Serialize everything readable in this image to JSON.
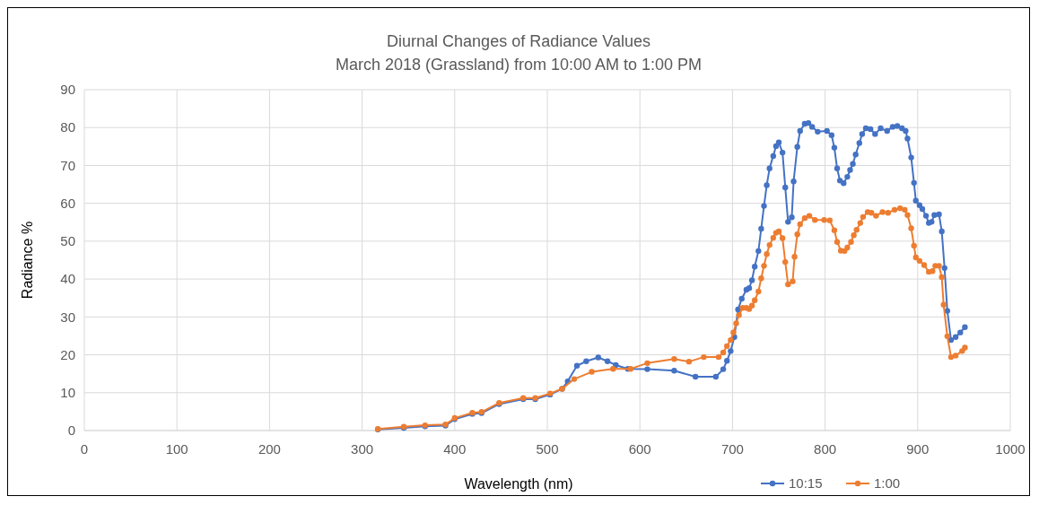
{
  "chart_data": {
    "type": "line",
    "title": "Diurnal Changes of Radiance Values",
    "subtitle": "March 2018 (Grassland) from 10:00 AM to 1:00 PM",
    "xlabel": "Wavelength (nm)",
    "ylabel": "Radiance %",
    "xlim": [
      0,
      1000
    ],
    "xticks": [
      0,
      100,
      200,
      300,
      400,
      500,
      600,
      700,
      800,
      900,
      1000
    ],
    "ylim": [
      0,
      90
    ],
    "yticks": [
      0,
      10,
      20,
      30,
      40,
      50,
      60,
      70,
      80,
      90
    ],
    "grid": true,
    "legend": "bottom right",
    "marker": "circle",
    "line_style": "solid",
    "series": [
      {
        "name": "10:15",
        "color": "#4472c4",
        "x": [
          317,
          345,
          368,
          390,
          400,
          419,
          429,
          448,
          474,
          487,
          503,
          516,
          522,
          532,
          542,
          555,
          565,
          574,
          587,
          608,
          637,
          660,
          682,
          690,
          694,
          698,
          702,
          706,
          710,
          715,
          718,
          721,
          724,
          728,
          731,
          734,
          737,
          740,
          744,
          747,
          750,
          754,
          757,
          760,
          764,
          766,
          770,
          773,
          778,
          782,
          786,
          792,
          802,
          807,
          810,
          813,
          816,
          820,
          824,
          827,
          830,
          833,
          837,
          840,
          844,
          849,
          854,
          860,
          867,
          873,
          878,
          883,
          887,
          889,
          893,
          896,
          898,
          902,
          905,
          909,
          912,
          915,
          918,
          923,
          926,
          929,
          932,
          936,
          941,
          946,
          951
        ],
        "values": [
          0.3,
          0.7,
          1.1,
          1.3,
          3,
          4.4,
          4.6,
          7,
          8.3,
          8.3,
          9.5,
          11,
          13,
          17.1,
          18.3,
          19.3,
          18.3,
          17.3,
          16.3,
          16.2,
          15.8,
          14.2,
          14.2,
          16.2,
          18.4,
          21,
          24.7,
          32,
          34.8,
          37.2,
          37.6,
          39.7,
          43.3,
          47.4,
          53.3,
          59.3,
          64.8,
          69.2,
          72.5,
          75.1,
          76.1,
          73.4,
          64.2,
          55.1,
          56.3,
          65.8,
          74.9,
          79.1,
          81,
          81.2,
          80.2,
          78.9,
          79.1,
          78,
          74.7,
          69.2,
          66,
          65.3,
          67,
          68.8,
          70.4,
          72.9,
          75.9,
          78.3,
          79.8,
          79.6,
          78.3,
          79.8,
          79.1,
          80.2,
          80.4,
          79.8,
          79.1,
          77.1,
          72.1,
          65.4,
          60.7,
          59.5,
          58.5,
          56.7,
          54.8,
          55.1,
          56.9,
          57.1,
          52.6,
          42.9,
          31.6,
          23.9,
          24.7,
          25.9,
          27.3
        ]
      },
      {
        "name": "1:00",
        "color": "#ed7d31",
        "x": [
          317,
          345,
          368,
          390,
          400,
          419,
          429,
          448,
          474,
          487,
          503,
          516,
          529,
          548,
          571,
          590,
          608,
          637,
          653,
          669,
          685,
          690,
          694,
          698,
          701,
          704,
          707,
          711,
          715,
          718,
          721,
          724,
          728,
          731,
          734,
          737,
          740,
          744,
          747,
          750,
          754,
          757,
          760,
          765,
          767,
          770,
          773,
          778,
          783,
          789,
          799,
          805,
          810,
          813,
          817,
          821,
          824,
          828,
          831,
          834,
          838,
          841,
          846,
          850,
          855,
          862,
          868,
          875,
          881,
          886,
          889,
          893,
          896,
          898,
          902,
          907,
          912,
          916,
          919,
          923,
          926,
          928,
          932,
          936,
          941,
          948,
          951
        ],
        "values": [
          0.4,
          1,
          1.4,
          1.6,
          3.3,
          4.7,
          4.9,
          7.3,
          8.6,
          8.6,
          9.8,
          11,
          13.6,
          15.5,
          16.3,
          16.3,
          17.8,
          18.9,
          18.2,
          19.4,
          19.4,
          20.6,
          22.3,
          23.9,
          25.9,
          28.3,
          30.5,
          32.4,
          32.4,
          32.1,
          33,
          34.4,
          36.7,
          40.2,
          43.5,
          46.6,
          49,
          50.9,
          52.2,
          52.6,
          50.8,
          44.5,
          38.6,
          39.4,
          45.9,
          51.8,
          54.5,
          56.1,
          56.7,
          55.6,
          55.6,
          55.5,
          52.9,
          49.8,
          47.5,
          47.4,
          48.3,
          49.8,
          51.6,
          53,
          54.8,
          56.4,
          57.7,
          57.5,
          56.7,
          57.7,
          57.5,
          58.3,
          58.7,
          58.3,
          56.9,
          53.4,
          48.8,
          45.7,
          44.8,
          43.7,
          41.9,
          42.1,
          43.5,
          43.5,
          40.5,
          33.2,
          24.9,
          19.4,
          19.8,
          21,
          21.9
        ]
      }
    ]
  }
}
